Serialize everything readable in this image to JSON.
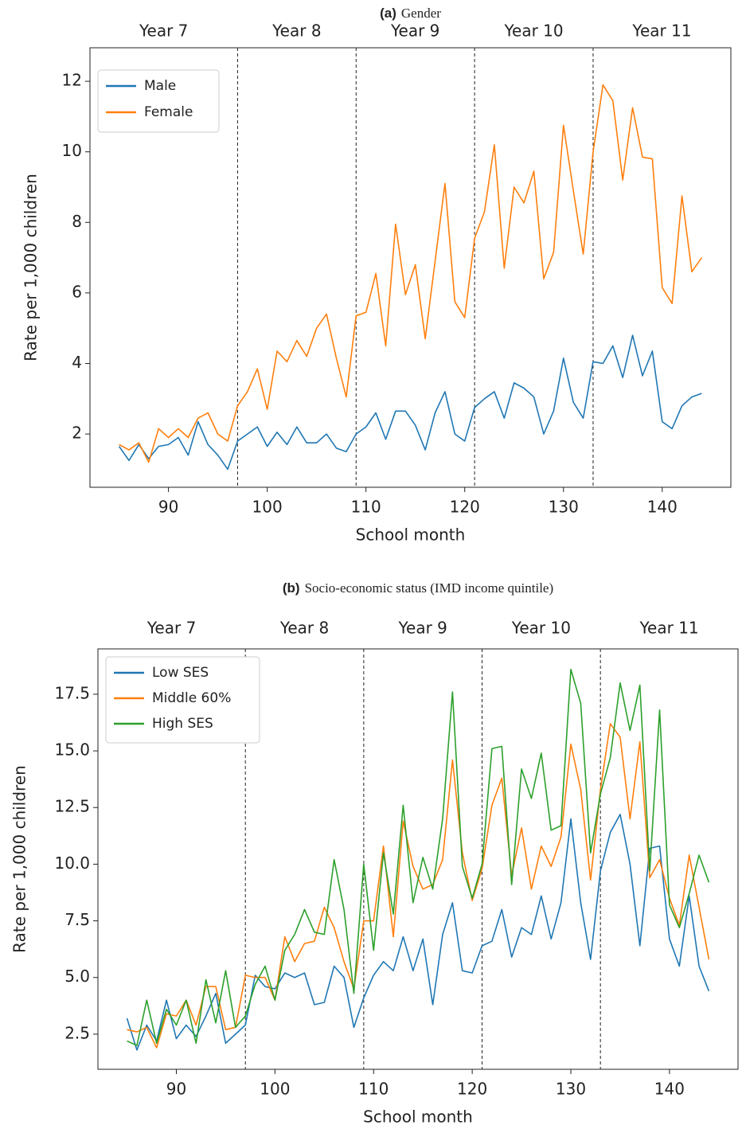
{
  "chart_data": [
    {
      "type": "line",
      "label": "(a)",
      "title": "Gender",
      "top_labels": [
        "Year 7",
        "Year 8",
        "Year 9",
        "Year 10",
        "Year 11"
      ],
      "vlines": [
        97,
        109,
        121,
        133
      ],
      "xlabel": "School month",
      "ylabel": "Rate per 1,000 children",
      "x": [
        85,
        86,
        87,
        88,
        89,
        90,
        91,
        92,
        93,
        94,
        95,
        96,
        97,
        98,
        99,
        100,
        101,
        102,
        103,
        104,
        105,
        106,
        107,
        108,
        109,
        110,
        111,
        112,
        113,
        114,
        115,
        116,
        117,
        118,
        119,
        120,
        121,
        122,
        123,
        124,
        125,
        126,
        127,
        128,
        129,
        130,
        131,
        132,
        133,
        134,
        135,
        136,
        137,
        138,
        139,
        140,
        141,
        142,
        143,
        144
      ],
      "series": [
        {
          "name": "Male",
          "color": "#1f77b4",
          "values": [
            1.65,
            1.25,
            1.7,
            1.3,
            1.65,
            1.7,
            1.9,
            1.4,
            2.35,
            1.7,
            1.4,
            1.0,
            1.8,
            2.0,
            2.2,
            1.65,
            2.05,
            1.7,
            2.2,
            1.75,
            1.75,
            2.0,
            1.6,
            1.5,
            2.0,
            2.2,
            2.6,
            1.85,
            2.65,
            2.65,
            2.25,
            1.55,
            2.6,
            3.2,
            2.0,
            1.8,
            2.75,
            3.0,
            3.2,
            2.45,
            3.45,
            3.3,
            3.05,
            2.0,
            2.65,
            4.15,
            2.9,
            2.45,
            4.05,
            4.0,
            4.5,
            3.6,
            4.8,
            3.65,
            4.35,
            2.35,
            2.15,
            2.8,
            3.05,
            3.15
          ]
        },
        {
          "name": "Female",
          "color": "#ff7f0e",
          "values": [
            1.7,
            1.55,
            1.75,
            1.2,
            2.15,
            1.9,
            2.15,
            1.9,
            2.45,
            2.6,
            2.0,
            1.8,
            2.8,
            3.2,
            3.85,
            2.7,
            4.35,
            4.05,
            4.65,
            4.2,
            5.0,
            5.4,
            4.15,
            3.05,
            5.35,
            5.45,
            6.55,
            4.5,
            7.95,
            5.95,
            6.8,
            4.7,
            6.9,
            9.1,
            5.75,
            5.3,
            7.55,
            8.3,
            10.2,
            6.7,
            9.0,
            8.55,
            9.45,
            6.4,
            7.15,
            10.75,
            8.9,
            7.1,
            10.0,
            11.9,
            11.45,
            9.2,
            11.25,
            9.85,
            9.8,
            6.15,
            5.7,
            8.75,
            6.6,
            7.0
          ]
        }
      ],
      "xlim": [
        82.05,
        146.95
      ],
      "ylim": [
        0.49,
        12.95
      ],
      "xticks": [
        90,
        100,
        110,
        120,
        130,
        140
      ],
      "yticks": [
        2,
        4,
        6,
        8,
        10,
        12
      ],
      "legend": "upper left"
    },
    {
      "type": "line",
      "label": "(b)",
      "title": "Socio-economic status (IMD income quintile)",
      "top_labels": [
        "Year 7",
        "Year 8",
        "Year 9",
        "Year 10",
        "Year 11"
      ],
      "vlines": [
        97,
        109,
        121,
        133
      ],
      "xlabel": "School month",
      "ylabel": "Rate per 1,000 children",
      "x": [
        85,
        86,
        87,
        88,
        89,
        90,
        91,
        92,
        93,
        94,
        95,
        96,
        97,
        98,
        99,
        100,
        101,
        102,
        103,
        104,
        105,
        106,
        107,
        108,
        109,
        110,
        111,
        112,
        113,
        114,
        115,
        116,
        117,
        118,
        119,
        120,
        121,
        122,
        123,
        124,
        125,
        126,
        127,
        128,
        129,
        130,
        131,
        132,
        133,
        134,
        135,
        136,
        137,
        138,
        139,
        140,
        141,
        142,
        143,
        144
      ],
      "series": [
        {
          "name": "Low SES",
          "color": "#1f77b4",
          "values": [
            3.2,
            1.8,
            2.9,
            2.2,
            4.0,
            2.3,
            2.9,
            2.4,
            3.3,
            4.3,
            2.1,
            2.5,
            2.9,
            5.1,
            4.6,
            4.5,
            5.2,
            5.0,
            5.2,
            3.8,
            3.9,
            5.5,
            5.0,
            2.8,
            4.1,
            5.1,
            5.7,
            5.3,
            6.8,
            5.3,
            6.7,
            3.8,
            6.9,
            8.3,
            5.3,
            5.2,
            6.4,
            6.6,
            8.0,
            5.9,
            7.2,
            6.9,
            8.6,
            6.7,
            8.3,
            12.0,
            8.3,
            5.8,
            9.7,
            11.4,
            12.2,
            10.0,
            6.4,
            10.7,
            10.8,
            6.7,
            5.5,
            8.6,
            5.5,
            4.4
          ]
        },
        {
          "name": "Middle 60%",
          "color": "#ff7f0e",
          "values": [
            2.7,
            2.6,
            2.8,
            1.9,
            3.4,
            3.3,
            4.0,
            2.9,
            4.6,
            4.6,
            2.7,
            2.8,
            5.1,
            5.0,
            5.0,
            4.0,
            6.8,
            5.7,
            6.5,
            6.6,
            8.1,
            7.2,
            5.7,
            4.5,
            7.5,
            7.5,
            10.8,
            6.8,
            11.9,
            9.9,
            8.9,
            9.1,
            10.2,
            14.6,
            10.5,
            8.4,
            9.8,
            12.6,
            13.8,
            9.5,
            11.6,
            8.9,
            10.8,
            9.9,
            11.2,
            15.3,
            13.3,
            9.3,
            13.3,
            16.2,
            15.6,
            12.0,
            15.4,
            9.4,
            10.2,
            8.5,
            7.3,
            10.4,
            8.1,
            5.8
          ]
        },
        {
          "name": "High SES",
          "color": "#2ca02c",
          "values": [
            2.2,
            2.0,
            4.0,
            2.1,
            3.6,
            2.9,
            4.0,
            2.1,
            4.9,
            3.0,
            5.3,
            2.8,
            3.3,
            4.7,
            5.5,
            4.0,
            6.2,
            6.9,
            8.0,
            7.0,
            6.9,
            10.2,
            8.0,
            4.3,
            10.0,
            6.2,
            10.5,
            7.8,
            12.6,
            8.3,
            10.3,
            8.9,
            12.0,
            17.6,
            9.9,
            8.5,
            10.0,
            15.1,
            15.2,
            9.1,
            14.2,
            12.9,
            14.9,
            11.5,
            11.7,
            18.6,
            17.1,
            10.5,
            13.1,
            14.7,
            18.0,
            15.9,
            17.9,
            9.7,
            16.8,
            8.2,
            7.2,
            8.7,
            10.4,
            9.2
          ]
        }
      ],
      "xlim": [
        82.05,
        146.95
      ],
      "ylim": [
        0.95,
        19.5
      ],
      "xticks": [
        90,
        100,
        110,
        120,
        130,
        140
      ],
      "yticks": [
        2.5,
        {
          "value": 5,
          "label": "5.0"
        },
        7.5,
        {
          "value": 10,
          "label": "10.0"
        },
        12.5,
        {
          "value": 15,
          "label": "15.0"
        },
        17.5
      ],
      "legend": "upper left"
    }
  ]
}
